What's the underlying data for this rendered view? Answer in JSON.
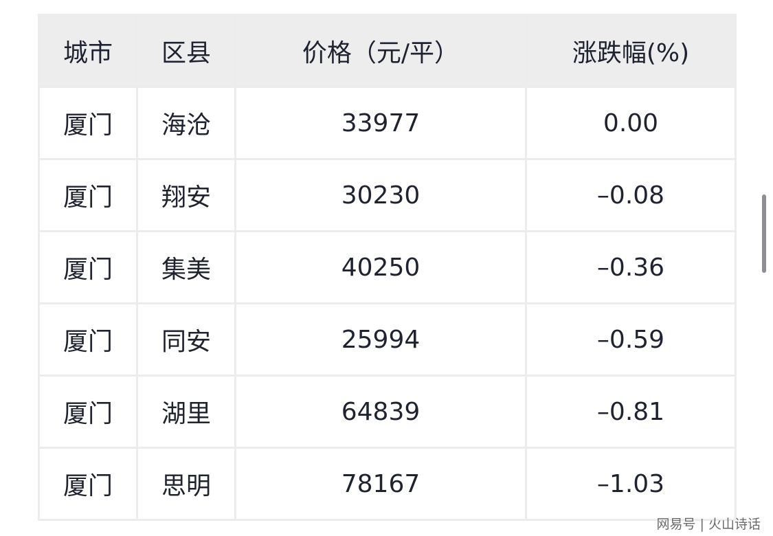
{
  "table": {
    "headers": [
      "城市",
      "区县",
      "价格（元/平）",
      "涨跌幅(%)"
    ],
    "rows": [
      [
        "厦门",
        "海沧",
        "33977",
        "0.00"
      ],
      [
        "厦门",
        "翔安",
        "30230",
        "–0.08"
      ],
      [
        "厦门",
        "集美",
        "40250",
        "–0.36"
      ],
      [
        "厦门",
        "同安",
        "25994",
        "–0.59"
      ],
      [
        "厦门",
        "湖里",
        "64839",
        "–0.81"
      ],
      [
        "厦门",
        "思明",
        "78167",
        "–1.03"
      ]
    ]
  },
  "watermark": "网易号 | 火山诗话"
}
